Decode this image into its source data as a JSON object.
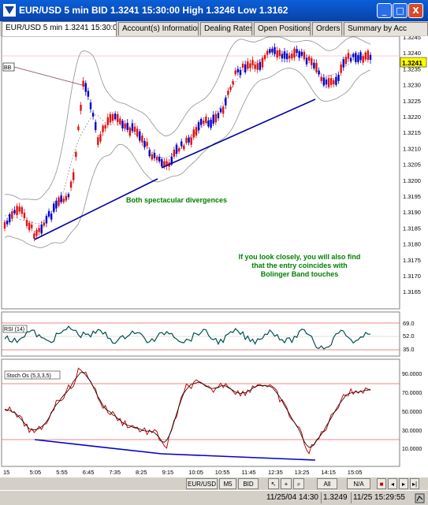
{
  "window": {
    "title": "EUR/USD 5 min BID 1.3241 15:30:00 High 1.3246 Low 1.3162",
    "min_label": "_",
    "max_label": "□",
    "close_label": "X"
  },
  "tabs": [
    {
      "label": "EUR/USD 5 min 1.3241 15:30:00",
      "active": true
    },
    {
      "label": "Account(s) Information",
      "active": false
    },
    {
      "label": "Dealing Rates",
      "active": false
    },
    {
      "label": "Open Positions",
      "active": false
    },
    {
      "label": "Orders",
      "active": false
    },
    {
      "label": "Summary by Acc",
      "active": false
    }
  ],
  "price_panel": {
    "y_ticks": [
      "1.3245",
      "1.3240",
      "1.3235",
      "1.3230",
      "1.3225",
      "1.3220",
      "1.3215",
      "1.3210",
      "1.3205",
      "1.3200",
      "1.3195",
      "1.3190",
      "1.3185",
      "1.3180",
      "1.3175",
      "1.3170",
      "1.3165"
    ],
    "current_price": "1.3241",
    "indicator_tag": "BB",
    "annotation_divergence": "Both spectacular divergences",
    "annotation_entry": [
      "If you look closely, you will also find",
      "that the entry coincides with",
      "Bolinger Band touches"
    ]
  },
  "rsi_panel": {
    "label": "RSI (14)",
    "y_ticks": [
      "69.0",
      "52.0",
      "35.0"
    ]
  },
  "stoch_panel": {
    "label": "Stoch Os (5,3,3,5)",
    "y_ticks": [
      "90.0000",
      "70.0000",
      "50.0000",
      "30.0000",
      "10.0000"
    ]
  },
  "time_axis": [
    "15",
    "5:05",
    "5:55",
    "6:45",
    "7:35",
    "8:25",
    "9:15",
    "10:05",
    "10:55",
    "11:45",
    "12:35",
    "13:25",
    "14:15",
    "15:05"
  ],
  "bottom_toolbar": {
    "symbol": "EUR/USD",
    "timeframe": "M5",
    "side": "BID",
    "all_label": "All",
    "na_label": "N/A"
  },
  "status": {
    "time1": "11/25/04 14:30",
    "price": "1.3249",
    "time2": "11/25 15:29:55"
  },
  "colors": {
    "up_candle": "#0000cc",
    "down_candle": "#e01010",
    "trendline": "#0000a0",
    "annotation_text": "#008000",
    "rsi_line": "#005050",
    "stoch_main": "#cc0000",
    "stoch_signal": "#000000"
  }
}
